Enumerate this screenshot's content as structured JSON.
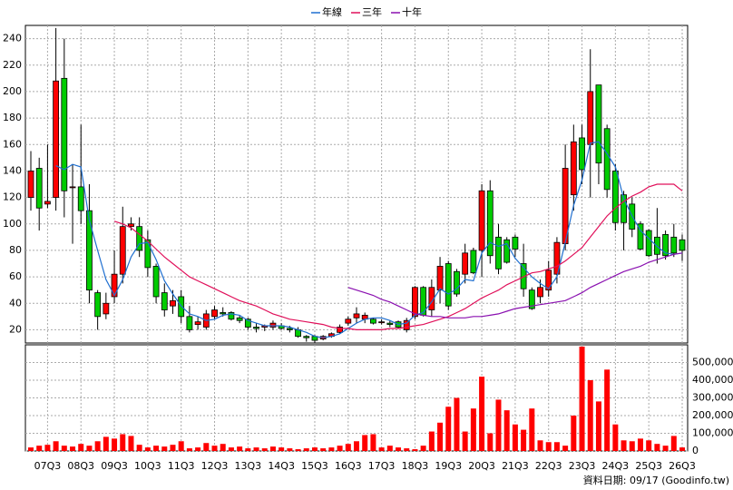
{
  "chart_data": {
    "type": "candlestick",
    "categories": [
      null,
      null,
      "07Q3",
      null,
      null,
      null,
      "08Q3",
      null,
      null,
      null,
      "09Q3",
      null,
      null,
      null,
      "10Q3",
      null,
      null,
      null,
      "11Q3",
      null,
      null,
      null,
      "12Q3",
      null,
      null,
      null,
      "13Q3",
      null,
      null,
      null,
      "14Q3",
      null,
      null,
      null,
      "15Q3",
      null,
      null,
      null,
      "16Q3",
      null,
      null,
      null,
      "17Q3",
      null,
      null,
      null,
      "18Q3",
      null,
      null,
      null,
      "19Q3",
      null,
      null,
      null,
      "20Q3",
      null,
      null,
      null,
      "21Q3",
      null,
      null,
      null,
      "22Q3",
      null,
      null,
      null,
      "23Q3",
      null,
      null,
      null,
      "24Q3",
      null,
      null,
      null,
      "25Q3",
      null,
      null,
      null,
      "26Q3"
    ],
    "open": [
      120,
      142,
      115,
      120,
      210,
      128,
      128,
      110,
      48,
      32,
      45,
      62,
      98,
      98,
      88,
      68,
      48,
      38,
      45,
      30,
      24,
      22,
      30,
      33,
      33,
      29,
      28,
      22,
      22,
      22,
      23,
      21,
      20,
      15,
      15,
      13,
      15,
      18,
      25,
      29,
      28,
      28,
      26,
      25,
      26,
      20,
      30,
      52,
      35,
      50,
      70,
      64,
      62,
      80,
      80,
      125,
      90,
      88,
      90,
      70,
      50,
      45,
      50,
      62,
      85,
      122,
      165,
      160,
      205,
      172,
      140,
      122,
      115,
      100,
      95,
      90,
      92,
      90,
      88
    ],
    "high": [
      155,
      150,
      160,
      248,
      240,
      145,
      175,
      130,
      50,
      48,
      80,
      113,
      105,
      105,
      95,
      70,
      55,
      50,
      50,
      38,
      30,
      35,
      38,
      37,
      34,
      31,
      29,
      25,
      24,
      27,
      25,
      23,
      22,
      16,
      16,
      16,
      18,
      24,
      30,
      37,
      33,
      29,
      28,
      27,
      27,
      29,
      53,
      53,
      58,
      75,
      72,
      66,
      85,
      82,
      130,
      133,
      100,
      90,
      92,
      85,
      52,
      58,
      72,
      90,
      160,
      175,
      175,
      232,
      205,
      175,
      145,
      125,
      120,
      102,
      96,
      112,
      95,
      100,
      92
    ],
    "low": [
      110,
      95,
      112,
      110,
      105,
      85,
      100,
      40,
      20,
      28,
      40,
      55,
      95,
      75,
      60,
      40,
      30,
      32,
      25,
      18,
      20,
      20,
      28,
      30,
      27,
      25,
      20,
      18,
      19,
      20,
      20,
      18,
      14,
      11,
      10,
      12,
      14,
      17,
      23,
      25,
      25,
      24,
      24,
      22,
      21,
      18,
      28,
      30,
      30,
      40,
      35,
      45,
      55,
      62,
      60,
      70,
      62,
      70,
      75,
      45,
      35,
      40,
      45,
      55,
      80,
      110,
      130,
      120,
      130,
      120,
      95,
      80,
      90,
      80,
      75,
      70,
      73,
      75,
      72
    ],
    "close": [
      140,
      112,
      117,
      208,
      125,
      128,
      110,
      50,
      30,
      40,
      62,
      98,
      100,
      80,
      67,
      45,
      35,
      42,
      30,
      20,
      26,
      32,
      35,
      32,
      28,
      27,
      22,
      21,
      23,
      25,
      21,
      20,
      15,
      14,
      12,
      15,
      17,
      22,
      28,
      32,
      31,
      25,
      26,
      24,
      22,
      27,
      52,
      31,
      52,
      68,
      38,
      47,
      78,
      63,
      125,
      76,
      66,
      71,
      81,
      51,
      36,
      52,
      65,
      86,
      142,
      162,
      141,
      200,
      146,
      126,
      101,
      101,
      96,
      81,
      76,
      77,
      76,
      78,
      80
    ],
    "up_color": "#ff0000",
    "down_color": "#00cc00",
    "series": [
      {
        "name": "年線",
        "color": "#1f6fd0",
        "values": [
          null,
          null,
          null,
          144,
          141,
          145,
          143,
          103,
          80,
          58,
          46,
          58,
          75,
          85,
          86,
          73,
          57,
          47,
          38,
          32,
          30,
          27,
          28,
          31,
          32,
          31,
          27,
          25,
          23,
          23,
          23,
          22,
          20,
          18,
          15,
          14,
          15,
          17,
          21,
          25,
          28,
          29,
          29,
          27,
          24,
          25,
          31,
          33,
          41,
          51,
          47,
          51,
          58,
          57,
          78,
          86,
          83,
          85,
          74,
          67,
          60,
          55,
          51,
          60,
          86,
          114,
          133,
          161,
          162,
          153,
          143,
          119,
          106,
          95,
          89,
          83,
          78,
          77,
          78
        ]
      },
      {
        "name": "三年",
        "color": "#e0105a",
        "values": [
          null,
          null,
          null,
          null,
          null,
          null,
          null,
          null,
          null,
          null,
          102,
          100,
          97,
          92,
          87,
          81,
          75,
          70,
          65,
          60,
          57,
          54,
          51,
          48,
          45,
          42,
          40,
          38,
          35,
          32,
          30,
          28,
          27,
          26,
          25,
          24,
          22,
          21,
          21,
          20,
          20,
          20,
          20,
          21,
          21,
          22,
          23,
          24,
          26,
          28,
          30,
          33,
          36,
          40,
          44,
          47,
          50,
          54,
          57,
          60,
          63,
          64,
          66,
          68,
          72,
          77,
          82,
          90,
          98,
          106,
          112,
          117,
          121,
          124,
          128,
          130,
          130,
          130,
          125
        ]
      },
      {
        "name": "十年",
        "color": "#8a10b0",
        "values": [
          null,
          null,
          null,
          null,
          null,
          null,
          null,
          null,
          null,
          null,
          null,
          null,
          null,
          null,
          null,
          null,
          null,
          null,
          null,
          null,
          null,
          null,
          null,
          null,
          null,
          null,
          null,
          null,
          null,
          null,
          null,
          null,
          null,
          null,
          null,
          null,
          null,
          null,
          52,
          50,
          48,
          46,
          43,
          41,
          38,
          35,
          32,
          31,
          30,
          30,
          29,
          29,
          29,
          30,
          30,
          31,
          32,
          34,
          36,
          37,
          38,
          39,
          40,
          41,
          42,
          45,
          48,
          52,
          55,
          58,
          61,
          64,
          66,
          68,
          71,
          73,
          75,
          77,
          78
        ]
      }
    ],
    "volume": {
      "color": "#ff0000",
      "axis": "y2",
      "values": [
        20000,
        30000,
        35000,
        55000,
        30000,
        25000,
        40000,
        30000,
        55000,
        80000,
        70000,
        95000,
        85000,
        35000,
        20000,
        30000,
        25000,
        35000,
        55000,
        15000,
        20000,
        45000,
        30000,
        40000,
        20000,
        25000,
        15000,
        20000,
        15000,
        25000,
        20000,
        15000,
        10000,
        15000,
        20000,
        15000,
        20000,
        30000,
        40000,
        55000,
        90000,
        95000,
        20000,
        30000,
        20000,
        15000,
        10000,
        30000,
        110000,
        160000,
        250000,
        300000,
        110000,
        240000,
        420000,
        100000,
        290000,
        230000,
        150000,
        120000,
        240000,
        60000,
        50000,
        50000,
        30000,
        200000,
        590000,
        400000,
        280000,
        460000,
        150000,
        60000,
        55000,
        70000,
        60000,
        40000,
        30000,
        85000,
        20000
      ]
    },
    "ylim": [
      10,
      250
    ],
    "yticks": [
      20,
      40,
      60,
      80,
      100,
      120,
      140,
      160,
      180,
      200,
      220,
      240
    ],
    "y2lim": [
      0,
      600000
    ],
    "y2ticks": [
      0,
      {
        "value": 100000,
        "label": "100,000"
      },
      {
        "value": 200000,
        "label": "200,000"
      },
      {
        "value": 300000,
        "label": "300,000"
      },
      {
        "value": 400000,
        "label": "400,000"
      },
      {
        "value": 500000,
        "label": "500,000"
      }
    ],
    "grid": true,
    "legend": "top",
    "footnote": "資料日期: 09/17  (Goodinfo.tw)"
  }
}
